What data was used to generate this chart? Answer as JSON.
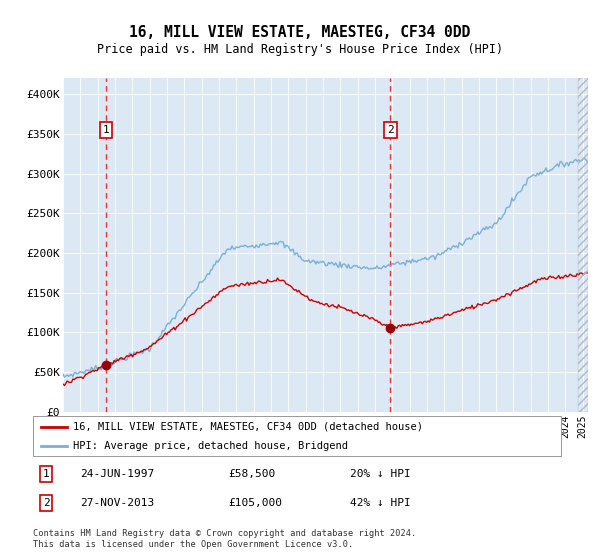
{
  "title": "16, MILL VIEW ESTATE, MAESTEG, CF34 0DD",
  "subtitle": "Price paid vs. HM Land Registry's House Price Index (HPI)",
  "legend_line1": "16, MILL VIEW ESTATE, MAESTEG, CF34 0DD (detached house)",
  "legend_line2": "HPI: Average price, detached house, Bridgend",
  "sale1_label": "1",
  "sale1_date": "24-JUN-1997",
  "sale1_price": "£58,500",
  "sale1_hpi": "20% ↓ HPI",
  "sale1_year": 1997.48,
  "sale1_value": 58500,
  "sale2_label": "2",
  "sale2_date": "27-NOV-2013",
  "sale2_price": "£105,000",
  "sale2_hpi": "42% ↓ HPI",
  "sale2_year": 2013.9,
  "sale2_value": 105000,
  "hpi_color": "#7bafd4",
  "price_color": "#cc0000",
  "marker_color": "#990000",
  "dashed_line_color": "#ee3333",
  "plot_bg_color": "#dce9f5",
  "footer": "Contains HM Land Registry data © Crown copyright and database right 2024.\nThis data is licensed under the Open Government Licence v3.0.",
  "ylim": [
    0,
    420000
  ],
  "yticks": [
    0,
    50000,
    100000,
    150000,
    200000,
    250000,
    300000,
    350000,
    400000
  ],
  "ytick_labels": [
    "£0",
    "£50K",
    "£100K",
    "£150K",
    "£200K",
    "£250K",
    "£300K",
    "£350K",
    "£400K"
  ],
  "xlim_start": 1995.0,
  "xlim_end": 2025.3
}
